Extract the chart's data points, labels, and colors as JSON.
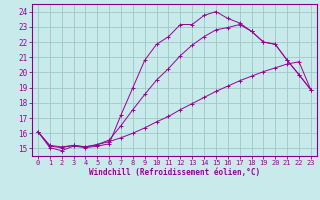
{
  "xlabel": "Windchill (Refroidissement éolien,°C)",
  "bg_color": "#c8eaea",
  "grid_color": "#a0c8c8",
  "line_color": "#990099",
  "spine_color": "#880088",
  "xlim": [
    -0.5,
    23.5
  ],
  "ylim": [
    14.5,
    24.5
  ],
  "xticks": [
    0,
    1,
    2,
    3,
    4,
    5,
    6,
    7,
    8,
    9,
    10,
    11,
    12,
    13,
    14,
    15,
    16,
    17,
    18,
    19,
    20,
    21,
    22,
    23
  ],
  "yticks": [
    15,
    16,
    17,
    18,
    19,
    20,
    21,
    22,
    23,
    24
  ],
  "series": [
    {
      "x": [
        0,
        1,
        2,
        3,
        4,
        5,
        6,
        7,
        8,
        9,
        10,
        11,
        12,
        13,
        14,
        15,
        16,
        17,
        18,
        19,
        20,
        21,
        22,
        23
      ],
      "y": [
        16.1,
        15.05,
        14.85,
        15.15,
        15.05,
        15.15,
        15.3,
        17.2,
        19.0,
        20.8,
        21.85,
        22.35,
        23.15,
        23.15,
        23.75,
        24.0,
        23.55,
        23.25,
        22.7,
        22.0,
        21.85,
        20.8,
        19.85,
        18.85
      ]
    },
    {
      "x": [
        0,
        1,
        2,
        3,
        4,
        5,
        6,
        7,
        8,
        9,
        10,
        11,
        12,
        13,
        14,
        15,
        16,
        17,
        18,
        19,
        20,
        21,
        22,
        23
      ],
      "y": [
        16.1,
        15.2,
        15.1,
        15.2,
        15.1,
        15.25,
        15.55,
        16.5,
        17.55,
        18.55,
        19.5,
        20.25,
        21.1,
        21.8,
        22.35,
        22.8,
        22.95,
        23.15,
        22.7,
        22.0,
        21.85,
        20.8,
        19.85,
        18.85
      ]
    },
    {
      "x": [
        0,
        1,
        2,
        3,
        4,
        5,
        6,
        7,
        8,
        9,
        10,
        11,
        12,
        13,
        14,
        15,
        16,
        17,
        18,
        19,
        20,
        21,
        22,
        23
      ],
      "y": [
        16.1,
        15.15,
        15.05,
        15.2,
        15.1,
        15.25,
        15.45,
        15.7,
        16.0,
        16.35,
        16.75,
        17.1,
        17.55,
        17.95,
        18.35,
        18.75,
        19.1,
        19.45,
        19.75,
        20.05,
        20.3,
        20.55,
        20.7,
        18.85
      ]
    }
  ]
}
